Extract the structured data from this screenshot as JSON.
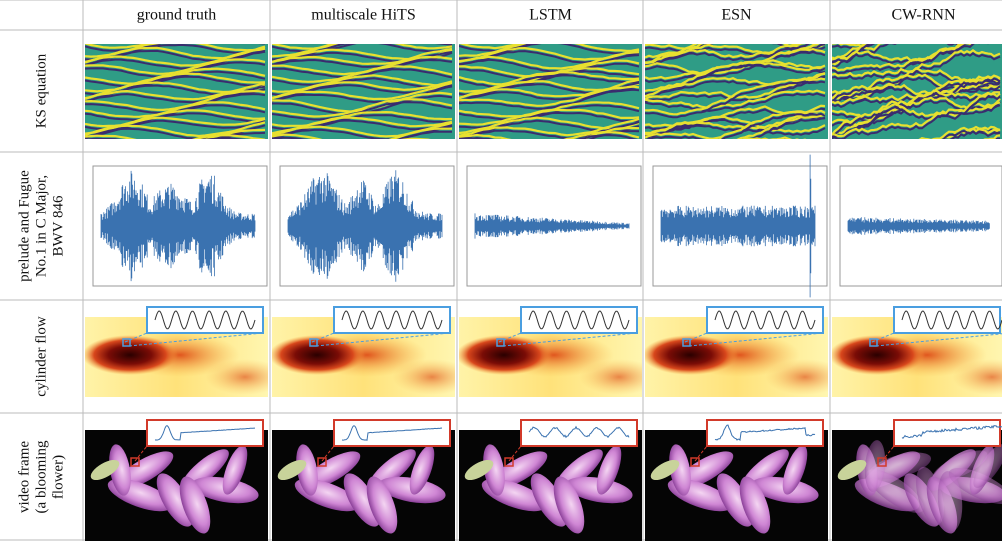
{
  "columns": [
    "ground truth",
    "multiscale HiTS",
    "LSTM",
    "ESN",
    "CW-RNN"
  ],
  "rows": [
    {
      "label": [
        "KS equation"
      ]
    },
    {
      "label": [
        "prelude and Fugue",
        "No.1 in C Major,",
        "BWV 846"
      ]
    },
    {
      "label": [
        "cylinder flow"
      ]
    },
    {
      "label": [
        "video frame",
        "(a blooming",
        "flower)"
      ]
    }
  ]
}
